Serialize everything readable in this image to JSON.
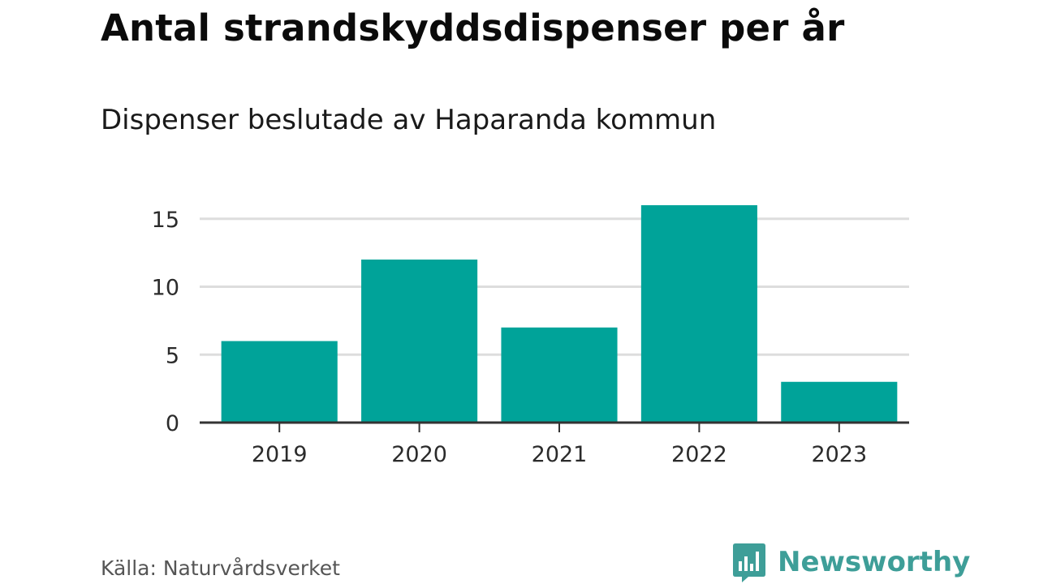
{
  "title": "Antal strandskyddsdispenser per år",
  "subtitle": "Dispenser beslutade av Haparanda kommun",
  "source": "Källa: Naturvårdsverket",
  "brand": {
    "name": "Newsworthy",
    "icon": "newsworthy-logo-icon",
    "color": "#3e9e98"
  },
  "chart_data": {
    "type": "bar",
    "title": "Antal strandskyddsdispenser per år",
    "subtitle": "Dispenser beslutade av Haparanda kommun",
    "categories": [
      "2019",
      "2020",
      "2021",
      "2022",
      "2023"
    ],
    "values": [
      6,
      12,
      7,
      16,
      3
    ],
    "xlabel": "",
    "ylabel": "",
    "ylim": [
      0,
      16
    ],
    "yticks": [
      0,
      5,
      10,
      15
    ],
    "grid": true,
    "legend": "none",
    "bar_color": "#00a399",
    "grid_color": "#dddddd",
    "axis_color": "#333333"
  }
}
